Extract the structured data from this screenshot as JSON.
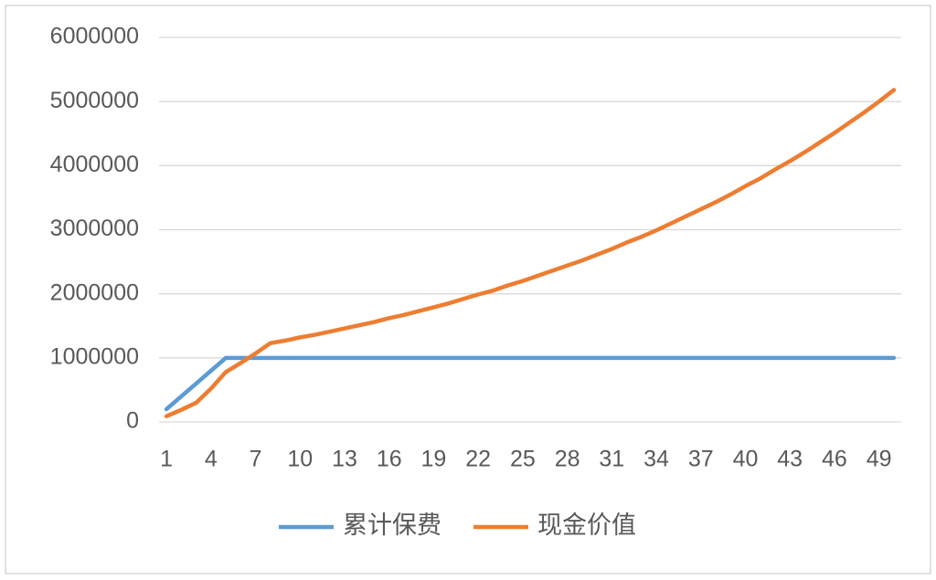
{
  "chart_data": {
    "type": "line",
    "categories": [
      "1",
      null,
      null,
      "4",
      null,
      null,
      "7",
      null,
      null,
      "10",
      null,
      null,
      "13",
      null,
      null,
      "16",
      null,
      null,
      "19",
      null,
      null,
      "22",
      null,
      null,
      "25",
      null,
      null,
      "28",
      null,
      null,
      "31",
      null,
      null,
      "34",
      null,
      null,
      "37",
      null,
      null,
      "40",
      null,
      null,
      "43",
      null,
      null,
      "46",
      null,
      null,
      "49",
      null
    ],
    "series": [
      {
        "name": "累计保费",
        "color": "#5b9bd5",
        "values": [
          200000,
          400000,
          600000,
          800000,
          1000000,
          1000000,
          1000000,
          1000000,
          1000000,
          1000000,
          1000000,
          1000000,
          1000000,
          1000000,
          1000000,
          1000000,
          1000000,
          1000000,
          1000000,
          1000000,
          1000000,
          1000000,
          1000000,
          1000000,
          1000000,
          1000000,
          1000000,
          1000000,
          1000000,
          1000000,
          1000000,
          1000000,
          1000000,
          1000000,
          1000000,
          1000000,
          1000000,
          1000000,
          1000000,
          1000000,
          1000000,
          1000000,
          1000000,
          1000000,
          1000000,
          1000000,
          1000000,
          1000000,
          1000000,
          1000000
        ]
      },
      {
        "name": "现金价值",
        "color": "#ed7d31",
        "values": [
          90000,
          190000,
          300000,
          520000,
          780000,
          920000,
          1070000,
          1230000,
          1270000,
          1320000,
          1360000,
          1410000,
          1460000,
          1510000,
          1560000,
          1620000,
          1670000,
          1730000,
          1790000,
          1850000,
          1920000,
          1990000,
          2050000,
          2130000,
          2200000,
          2280000,
          2360000,
          2440000,
          2520000,
          2610000,
          2700000,
          2800000,
          2890000,
          2990000,
          3100000,
          3210000,
          3320000,
          3430000,
          3550000,
          3680000,
          3800000,
          3940000,
          4070000,
          4210000,
          4360000,
          4510000,
          4670000,
          4830000,
          5000000,
          5180000
        ]
      }
    ],
    "ylim": [
      0,
      6000000
    ],
    "yticks": [
      0,
      1000000,
      2000000,
      3000000,
      4000000,
      5000000,
      6000000
    ],
    "grid": true,
    "legend": "bottom"
  }
}
